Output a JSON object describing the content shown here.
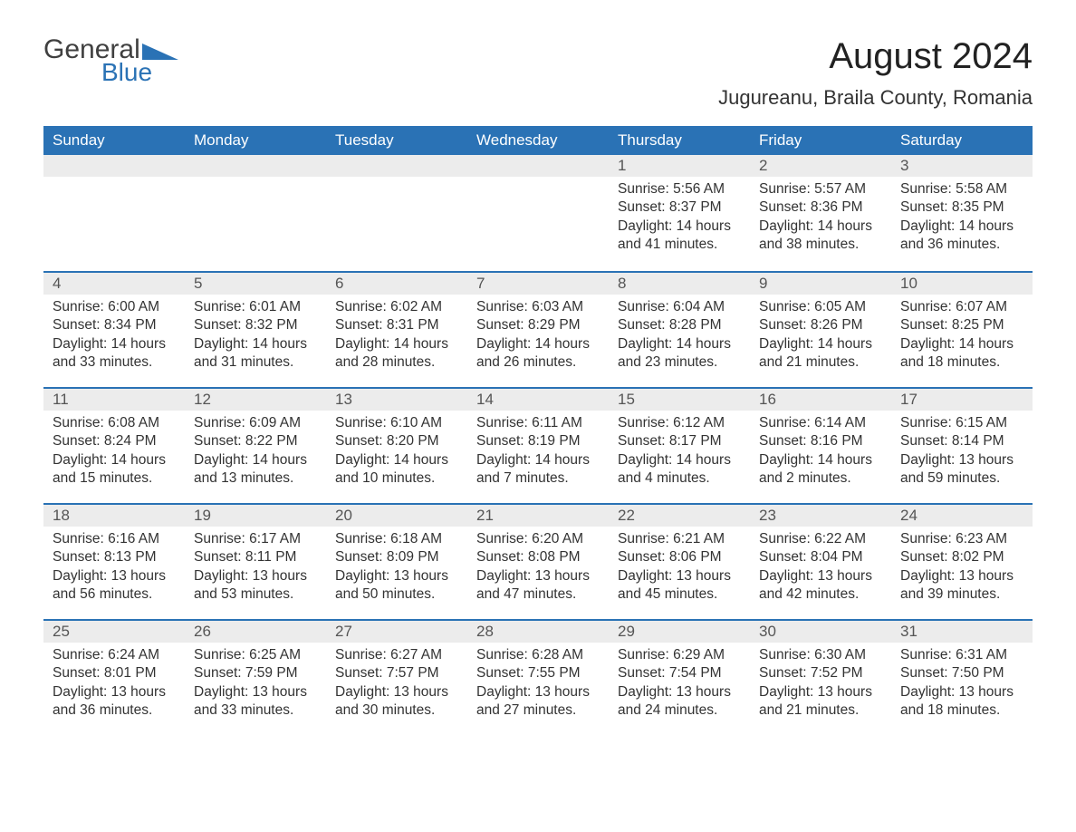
{
  "logo": {
    "general": "General",
    "blue": "Blue",
    "triangle_color": "#2a72b5"
  },
  "title": "August 2024",
  "location": "Jugureanu, Braila County, Romania",
  "colors": {
    "header_bg": "#2a72b5",
    "header_text": "#ffffff",
    "daynum_bg": "#ececec",
    "row_border": "#2a72b5",
    "body_text": "#333333",
    "page_bg": "#ffffff"
  },
  "typography": {
    "title_fontsize": 40,
    "location_fontsize": 22,
    "weekday_fontsize": 17,
    "daynum_fontsize": 17,
    "body_fontsize": 15.5
  },
  "weekdays": [
    "Sunday",
    "Monday",
    "Tuesday",
    "Wednesday",
    "Thursday",
    "Friday",
    "Saturday"
  ],
  "first_weekday_index": 4,
  "days": [
    {
      "n": 1,
      "sunrise": "5:56 AM",
      "sunset": "8:37 PM",
      "daylight": "14 hours and 41 minutes."
    },
    {
      "n": 2,
      "sunrise": "5:57 AM",
      "sunset": "8:36 PM",
      "daylight": "14 hours and 38 minutes."
    },
    {
      "n": 3,
      "sunrise": "5:58 AM",
      "sunset": "8:35 PM",
      "daylight": "14 hours and 36 minutes."
    },
    {
      "n": 4,
      "sunrise": "6:00 AM",
      "sunset": "8:34 PM",
      "daylight": "14 hours and 33 minutes."
    },
    {
      "n": 5,
      "sunrise": "6:01 AM",
      "sunset": "8:32 PM",
      "daylight": "14 hours and 31 minutes."
    },
    {
      "n": 6,
      "sunrise": "6:02 AM",
      "sunset": "8:31 PM",
      "daylight": "14 hours and 28 minutes."
    },
    {
      "n": 7,
      "sunrise": "6:03 AM",
      "sunset": "8:29 PM",
      "daylight": "14 hours and 26 minutes."
    },
    {
      "n": 8,
      "sunrise": "6:04 AM",
      "sunset": "8:28 PM",
      "daylight": "14 hours and 23 minutes."
    },
    {
      "n": 9,
      "sunrise": "6:05 AM",
      "sunset": "8:26 PM",
      "daylight": "14 hours and 21 minutes."
    },
    {
      "n": 10,
      "sunrise": "6:07 AM",
      "sunset": "8:25 PM",
      "daylight": "14 hours and 18 minutes."
    },
    {
      "n": 11,
      "sunrise": "6:08 AM",
      "sunset": "8:24 PM",
      "daylight": "14 hours and 15 minutes."
    },
    {
      "n": 12,
      "sunrise": "6:09 AM",
      "sunset": "8:22 PM",
      "daylight": "14 hours and 13 minutes."
    },
    {
      "n": 13,
      "sunrise": "6:10 AM",
      "sunset": "8:20 PM",
      "daylight": "14 hours and 10 minutes."
    },
    {
      "n": 14,
      "sunrise": "6:11 AM",
      "sunset": "8:19 PM",
      "daylight": "14 hours and 7 minutes."
    },
    {
      "n": 15,
      "sunrise": "6:12 AM",
      "sunset": "8:17 PM",
      "daylight": "14 hours and 4 minutes."
    },
    {
      "n": 16,
      "sunrise": "6:14 AM",
      "sunset": "8:16 PM",
      "daylight": "14 hours and 2 minutes."
    },
    {
      "n": 17,
      "sunrise": "6:15 AM",
      "sunset": "8:14 PM",
      "daylight": "13 hours and 59 minutes."
    },
    {
      "n": 18,
      "sunrise": "6:16 AM",
      "sunset": "8:13 PM",
      "daylight": "13 hours and 56 minutes."
    },
    {
      "n": 19,
      "sunrise": "6:17 AM",
      "sunset": "8:11 PM",
      "daylight": "13 hours and 53 minutes."
    },
    {
      "n": 20,
      "sunrise": "6:18 AM",
      "sunset": "8:09 PM",
      "daylight": "13 hours and 50 minutes."
    },
    {
      "n": 21,
      "sunrise": "6:20 AM",
      "sunset": "8:08 PM",
      "daylight": "13 hours and 47 minutes."
    },
    {
      "n": 22,
      "sunrise": "6:21 AM",
      "sunset": "8:06 PM",
      "daylight": "13 hours and 45 minutes."
    },
    {
      "n": 23,
      "sunrise": "6:22 AM",
      "sunset": "8:04 PM",
      "daylight": "13 hours and 42 minutes."
    },
    {
      "n": 24,
      "sunrise": "6:23 AM",
      "sunset": "8:02 PM",
      "daylight": "13 hours and 39 minutes."
    },
    {
      "n": 25,
      "sunrise": "6:24 AM",
      "sunset": "8:01 PM",
      "daylight": "13 hours and 36 minutes."
    },
    {
      "n": 26,
      "sunrise": "6:25 AM",
      "sunset": "7:59 PM",
      "daylight": "13 hours and 33 minutes."
    },
    {
      "n": 27,
      "sunrise": "6:27 AM",
      "sunset": "7:57 PM",
      "daylight": "13 hours and 30 minutes."
    },
    {
      "n": 28,
      "sunrise": "6:28 AM",
      "sunset": "7:55 PM",
      "daylight": "13 hours and 27 minutes."
    },
    {
      "n": 29,
      "sunrise": "6:29 AM",
      "sunset": "7:54 PM",
      "daylight": "13 hours and 24 minutes."
    },
    {
      "n": 30,
      "sunrise": "6:30 AM",
      "sunset": "7:52 PM",
      "daylight": "13 hours and 21 minutes."
    },
    {
      "n": 31,
      "sunrise": "6:31 AM",
      "sunset": "7:50 PM",
      "daylight": "13 hours and 18 minutes."
    }
  ],
  "labels": {
    "sunrise": "Sunrise:",
    "sunset": "Sunset:",
    "daylight": "Daylight:"
  }
}
